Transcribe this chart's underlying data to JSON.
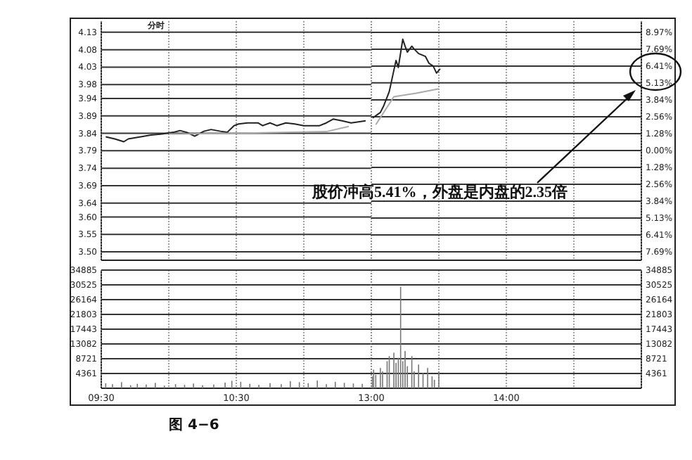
{
  "chart_data": [
    {
      "type": "line",
      "xlim": [
        9.5,
        11.5
      ],
      "ylim": [
        3.476,
        4.162
      ],
      "yticks": [
        4.13,
        4.08,
        4.03,
        3.98,
        3.94,
        3.89,
        3.84,
        3.79,
        3.74,
        3.69,
        3.64,
        {
          "value": 3.6,
          "label": "3.60"
        },
        3.55,
        {
          "value": 3.5,
          "label": "3.50"
        }
      ],
      "tick_labels": "y",
      "grid": true,
      "series": [
        {
          "color": "#222222",
          "x": [
            9.533,
            9.6,
            9.667,
            9.7,
            9.792,
            9.867,
            9.95,
            10.033,
            10.083,
            10.133,
            10.192,
            10.26,
            10.313,
            10.383,
            10.433,
            10.483,
            10.517,
            10.583,
            10.66,
            10.695,
            10.75,
            10.8,
            10.867,
            10.933,
            11,
            11.117,
            11.167,
            11.217,
            11.283,
            11.35,
            11.458
          ],
          "values": [
            3.83,
            3.824,
            3.816,
            3.824,
            3.83,
            3.835,
            3.838,
            3.843,
            3.848,
            3.843,
            3.832,
            3.846,
            3.851,
            3.846,
            3.843,
            3.862,
            3.867,
            3.87,
            3.87,
            3.862,
            3.87,
            3.862,
            3.87,
            3.867,
            3.862,
            3.862,
            3.87,
            3.881,
            3.876,
            3.87,
            3.876
          ]
        },
        {
          "color": "#aaaaaa",
          "x": [
            10,
            10.5,
            11.167,
            11.333
          ],
          "values": [
            3.838,
            3.84,
            3.845,
            3.86
          ]
        }
      ],
      "annotations": [
        "分时"
      ]
    },
    {
      "type": "line",
      "xlim": [
        13,
        15
      ],
      "ylim": [
        3.476,
        4.162
      ],
      "y2lim": [
        -8.33,
        9.82
      ],
      "y2ticks": [
        {
          "value": 8.97,
          "label": "8.97%"
        },
        {
          "value": 7.69,
          "label": "7.69%"
        },
        {
          "value": 6.41,
          "label": "6.41%"
        },
        {
          "value": 5.13,
          "label": "5.13%"
        },
        {
          "value": 3.84,
          "label": "3.84%"
        },
        {
          "value": 2.56,
          "label": "2.56%"
        },
        {
          "value": 1.28,
          "label": "1.28%"
        },
        {
          "value": 0,
          "label": "0.00%"
        },
        {
          "value": -1.28,
          "label": "1.28%"
        },
        {
          "value": -2.56,
          "label": "2.56%"
        },
        {
          "value": -3.84,
          "label": "3.84%"
        },
        {
          "value": -5.13,
          "label": "5.13%"
        },
        {
          "value": -6.41,
          "label": "6.41%"
        },
        {
          "value": -7.69,
          "label": "7.69%"
        }
      ],
      "tick_labels": "y",
      "grid": true,
      "series": [
        {
          "color": "#222222",
          "x": [
            13.01,
            13.067,
            13.093,
            13.133,
            13.167,
            13.183,
            13.2,
            13.233,
            13.25,
            13.267,
            13.3,
            13.317,
            13.35,
            13.4,
            13.427,
            13.458,
            13.483,
            13.51
          ],
          "values": [
            3.884,
            3.9,
            3.92,
            3.96,
            4.021,
            4.049,
            4.029,
            4.11,
            4.09,
            4.073,
            4.09,
            4.082,
            4.069,
            4.061,
            4.041,
            4.033,
            4.013,
            4.025
          ]
        },
        {
          "color": "#aaaaaa",
          "x": [
            13.033,
            13.167,
            13.333,
            13.5
          ],
          "values": [
            3.865,
            3.945,
            3.955,
            3.968
          ]
        }
      ],
      "annotations": [
        "股价冲高5.41%，外盘是内盘的2.35倍"
      ]
    },
    {
      "type": "bar",
      "xlim": [
        9.5,
        11.5
      ],
      "xticks": [
        {
          "value": 9.5,
          "label": "09:30"
        },
        {
          "value": 10,
          "label": null
        },
        {
          "value": 10.5,
          "label": "10:30"
        },
        {
          "value": 11,
          "label": null
        },
        {
          "value": 11.5,
          "label": null
        }
      ],
      "ylim": [
        0,
        34885
      ],
      "yticks": [
        4361,
        8721,
        13082,
        17443,
        21803,
        26164,
        30525,
        34885
      ],
      "grid": true,
      "color": "#777777",
      "x": [
        9.533,
        9.583,
        9.65,
        9.717,
        9.767,
        9.833,
        9.9,
        9.967,
        10.05,
        10.117,
        10.183,
        10.25,
        10.333,
        10.417,
        10.467,
        10.533,
        10.6,
        10.667,
        10.75,
        10.833,
        10.9,
        10.967,
        11.033,
        11.1,
        11.167,
        11.233,
        11.3,
        11.367,
        11.433
      ],
      "values": [
        1500,
        1200,
        1800,
        900,
        1300,
        1100,
        1600,
        800,
        1200,
        1000,
        1400,
        900,
        1100,
        1700,
        2200,
        1900,
        1300,
        1000,
        1500,
        1200,
        2100,
        1800,
        1500,
        2300,
        1200,
        1900,
        1600,
        1400,
        1300
      ],
      "annotations": [
        "图 4−6"
      ]
    },
    {
      "type": "bar",
      "xlim": [
        13,
        15
      ],
      "xticks": [
        {
          "value": 13,
          "label": "13:00"
        },
        {
          "value": 13.5,
          "label": null
        },
        {
          "value": 14,
          "label": "14:00"
        },
        {
          "value": 14.5,
          "label": null
        },
        {
          "value": 15,
          "label": null
        }
      ],
      "y2lim": [
        0,
        34885
      ],
      "y2ticks": [
        4361,
        8721,
        13082,
        17443,
        21803,
        26164,
        30525,
        34885
      ],
      "grid": true,
      "x": [
        13.008,
        13.017,
        13.033,
        13.067,
        13.083,
        13.117,
        13.133,
        13.167,
        13.183,
        13.2,
        13.217,
        13.233,
        13.25,
        13.267,
        13.3,
        13.317,
        13.35,
        13.383,
        13.417,
        13.45,
        13.467,
        13.5
      ],
      "series": [
        {
          "color": "#777777",
          "axis": "y2",
          "values": [
            3500,
            5500,
            4000,
            6000,
            5000,
            8000,
            9500,
            10500,
            7500,
            9000,
            30000,
            8000,
            11000,
            6500,
            9500,
            5000,
            7000,
            4500,
            6000,
            3500,
            2500,
            4800
          ]
        }
      ]
    }
  ]
}
